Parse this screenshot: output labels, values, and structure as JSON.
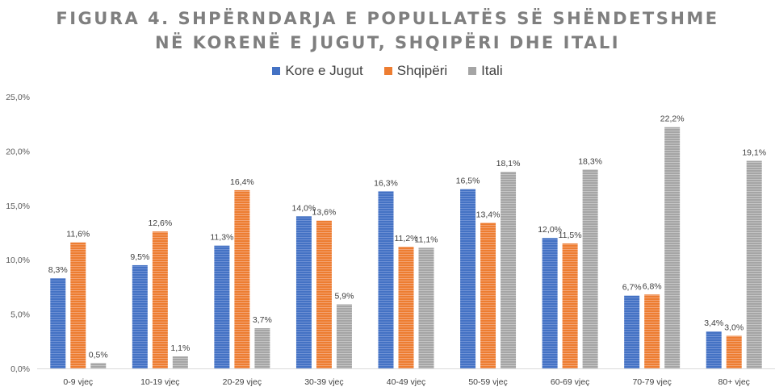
{
  "chart_data": {
    "type": "bar",
    "title_line1": "FIGURA 4. SHPËRNDARJA E POPULLATËS SË SHËNDETSHME",
    "title_line2": "NË KORENË E JUGUT, SHQIPËRI DHE ITALI",
    "categories": [
      "0-9 vjeç",
      "10-19 vjeç",
      "20-29 vjeç",
      "30-39 vjeç",
      "40-49 vjeç",
      "50-59 vjeç",
      "60-69 vjeç",
      "70-79 vjeç",
      "80+ vjeç"
    ],
    "series": [
      {
        "name": "Kore e Jugut",
        "color": "#4472c4",
        "values": [
          8.3,
          9.5,
          11.3,
          14.0,
          16.3,
          16.5,
          12.0,
          6.7,
          3.4
        ],
        "labels": [
          "8,3%",
          "9,5%",
          "11,3%",
          "14,0%",
          "16,3%",
          "16,5%",
          "12,0%",
          "6,7%",
          "3,4%"
        ]
      },
      {
        "name": "Shqipëri",
        "color": "#ed7d31",
        "values": [
          11.6,
          12.6,
          16.4,
          13.6,
          11.2,
          13.4,
          11.5,
          6.8,
          3.0
        ],
        "labels": [
          "11,6%",
          "12,6%",
          "16,4%",
          "13,6%",
          "11,2%",
          "13,4%",
          "11,5%",
          "6,8%",
          "3,0%"
        ]
      },
      {
        "name": "Itali",
        "color": "#a5a5a5",
        "values": [
          0.5,
          1.1,
          3.7,
          5.9,
          11.1,
          18.1,
          18.3,
          22.2,
          19.1
        ],
        "labels": [
          "0,5%",
          "1,1%",
          "3,7%",
          "5,9%",
          "11,1%",
          "18,1%",
          "18,3%",
          "22,2%",
          "19,1%"
        ]
      }
    ],
    "yticks": [
      0,
      5,
      10,
      15,
      20,
      25
    ],
    "ytick_labels": [
      "0,0%",
      "5,0%",
      "10,0%",
      "15,0%",
      "20,0%",
      "25,0%"
    ],
    "ylim": [
      0,
      25
    ],
    "legend_position": "top-center",
    "grid": false
  }
}
